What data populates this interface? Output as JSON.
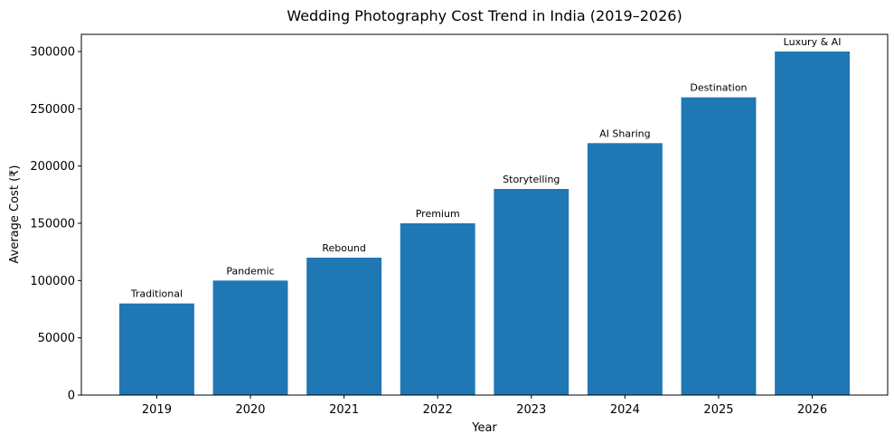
{
  "chart_data": {
    "type": "bar",
    "title": "Wedding Photography Cost Trend in India (2019–2026)",
    "xlabel": "Year",
    "ylabel": "Average Cost (₹)",
    "categories": [
      "2019",
      "2020",
      "2021",
      "2022",
      "2023",
      "2024",
      "2025",
      "2026"
    ],
    "values": [
      80000,
      100000,
      120000,
      150000,
      180000,
      220000,
      260000,
      300000
    ],
    "bar_labels": [
      "Traditional",
      "Pandemic",
      "Rebound",
      "Premium",
      "Storytelling",
      "AI Sharing",
      "Destination",
      "Luxury & AI"
    ],
    "ylim": [
      0,
      315000
    ],
    "yticks": [
      0,
      50000,
      100000,
      150000,
      200000,
      250000,
      300000
    ],
    "ytick_labels": [
      "0",
      "50000",
      "100000",
      "150000",
      "200000",
      "250000",
      "300000"
    ],
    "bar_color": "#1f77b4",
    "grid": false,
    "legend": "none"
  }
}
